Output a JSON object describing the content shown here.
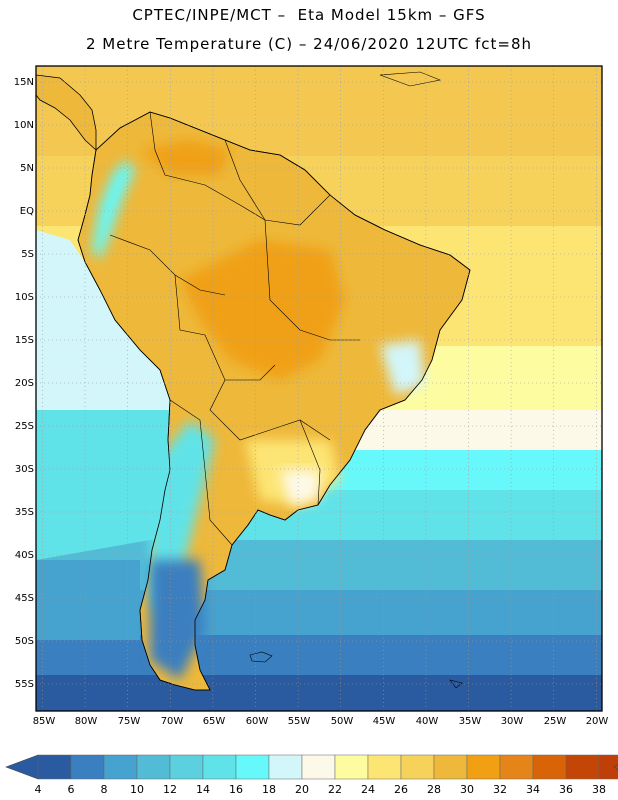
{
  "header": {
    "line1": "CPTEC/INPE/MCT –  Eta Model 15km – GFS",
    "line2": "2 Metre Temperature (C) – 24/06/2020 12UTC fct=8h"
  },
  "map": {
    "lat_labels": [
      "15N",
      "10N",
      "5N",
      "EQ",
      "5S",
      "10S",
      "15S",
      "20S",
      "25S",
      "30S",
      "35S",
      "40S",
      "45S",
      "50S",
      "55S"
    ],
    "lon_labels": [
      "85W",
      "80W",
      "75W",
      "70W",
      "65W",
      "60W",
      "55W",
      "50W",
      "45W",
      "40W",
      "35W",
      "30W",
      "25W",
      "20W"
    ]
  },
  "colorbar": {
    "labels": [
      "4",
      "6",
      "8",
      "10",
      "12",
      "14",
      "16",
      "18",
      "20",
      "22",
      "24",
      "26",
      "28",
      "30",
      "32",
      "34",
      "36",
      "38"
    ],
    "colors": [
      "#2a5aa0",
      "#3a7fc0",
      "#46a2cf",
      "#52bbd6",
      "#5cd0de",
      "#60e3e8",
      "#66f8fa",
      "#d2f6fa",
      "#fdf9e8",
      "#fefca0",
      "#fde574",
      "#f6d25a",
      "#eeb83a",
      "#f0a012",
      "#e58418",
      "#d96408",
      "#c44606",
      "#c03f06"
    ],
    "low_color": "#2a5aa0",
    "high_color": "#b8440c"
  }
}
